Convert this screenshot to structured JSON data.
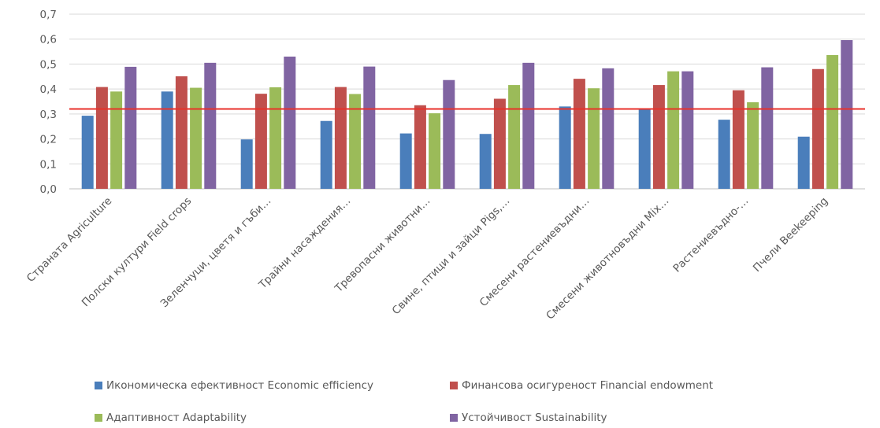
{
  "chart_data": {
    "type": "bar",
    "title": "",
    "xlabel": "",
    "ylabel": "",
    "ylim": [
      0,
      0.7
    ],
    "yticks": [
      "0,0",
      "0,1",
      "0,2",
      "0,3",
      "0,4",
      "0,5",
      "0,6",
      "0,7"
    ],
    "grid": true,
    "legend_position": "bottom",
    "reference_line": {
      "value": 0.32,
      "color": "#e8322b"
    },
    "categories": [
      "Страната Agriculture",
      "Полски култури Field crops",
      "Зеленчуци, цветя и гъби…",
      "Трайни насаждения…",
      "Тревопасни животни…",
      "Свине, птици и зайци Pigs,…",
      "Смесени растениевъдни…",
      "Смесени животновъдни Mix…",
      "Растениевъдно-…",
      "Пчели Beekeeping"
    ],
    "series": [
      {
        "name": "Икономическа ефективност Economic efficiency",
        "color": "#4a7ebb",
        "values": [
          0.293,
          0.39,
          0.198,
          0.272,
          0.222,
          0.22,
          0.33,
          0.32,
          0.277,
          0.209
        ]
      },
      {
        "name": "Финансова осигуреност Financial endowment",
        "color": "#c0504d",
        "values": [
          0.408,
          0.451,
          0.381,
          0.408,
          0.335,
          0.361,
          0.441,
          0.416,
          0.395,
          0.48
        ]
      },
      {
        "name": "Адаптивност Adaptability",
        "color": "#9bbb59",
        "values": [
          0.39,
          0.405,
          0.407,
          0.38,
          0.303,
          0.416,
          0.403,
          0.471,
          0.347,
          0.536
        ]
      },
      {
        "name": "Устойчивост Sustainability",
        "color": "#8064a2",
        "values": [
          0.489,
          0.505,
          0.53,
          0.49,
          0.436,
          0.505,
          0.483,
          0.471,
          0.487,
          0.596
        ]
      }
    ]
  }
}
